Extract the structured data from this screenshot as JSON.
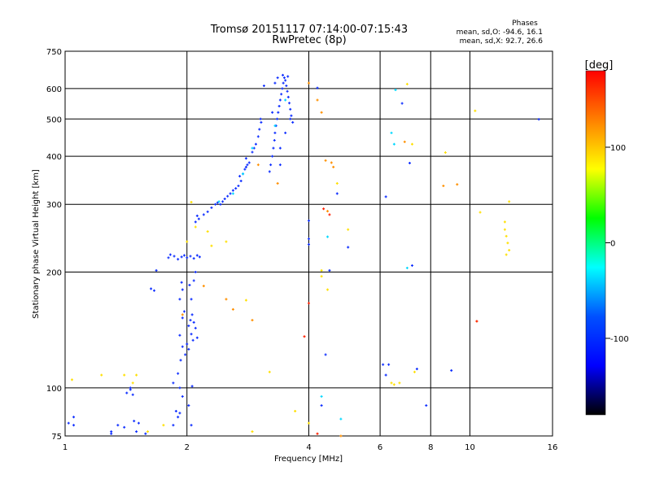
{
  "chart_data": {
    "type": "scatter",
    "title": "Tromsø 20151117 07:14:00-07:15:43",
    "subtitle": "RwPretec (8p)",
    "xlabel": "Frequency [MHz]",
    "ylabel": "Stationary phase Virtual Height [km]",
    "x_scale": "log",
    "y_scale": "log",
    "xlim": [
      1,
      16
    ],
    "ylim": [
      75,
      750
    ],
    "x_ticks": [
      1,
      2,
      4,
      6,
      8,
      10,
      16
    ],
    "y_ticks": [
      75,
      100,
      200,
      300,
      400,
      500,
      600,
      750
    ],
    "x_gridlines": [
      2,
      4,
      6,
      8,
      10
    ],
    "y_gridlines": [
      100,
      200,
      300,
      400,
      500,
      600
    ],
    "grid": true,
    "stats": {
      "heading": "Phases",
      "line1": "mean, sd,O: -94.6, 16.1",
      "line2": "mean, sd,X:  92.7, 26.6"
    },
    "colorbar": {
      "label": "[deg]",
      "min": -180,
      "max": 180,
      "ticks": [
        100,
        0,
        -100
      ],
      "tick_labels": [
        "100",
        "0",
        "-100"
      ],
      "colors": [
        "#ff0000",
        "#ff8000",
        "#ffff00",
        "#00ff00",
        "#00ffff",
        "#0050ff",
        "#0000ff",
        "#000000"
      ]
    },
    "series": [
      {
        "color": "#1030ff",
        "points": [
          [
            1.02,
            81
          ],
          [
            1.05,
            80
          ],
          [
            1.05,
            84
          ],
          [
            1.3,
            76
          ],
          [
            1.3,
            77
          ],
          [
            1.35,
            80
          ],
          [
            1.4,
            79
          ],
          [
            1.42,
            97
          ],
          [
            1.45,
            99
          ],
          [
            1.45,
            100
          ],
          [
            1.47,
            96
          ],
          [
            1.48,
            82
          ],
          [
            1.5,
            77
          ],
          [
            1.52,
            81
          ],
          [
            1.58,
            76
          ],
          [
            1.63,
            181
          ],
          [
            1.66,
            179
          ],
          [
            1.68,
            202
          ],
          [
            1.85,
            80
          ],
          [
            1.9,
            84
          ],
          [
            1.88,
            87
          ],
          [
            1.92,
            86
          ],
          [
            1.95,
            95
          ],
          [
            1.92,
            100
          ],
          [
            1.85,
            103
          ],
          [
            1.9,
            109
          ],
          [
            1.93,
            118
          ],
          [
            1.95,
            128
          ],
          [
            1.92,
            137
          ],
          [
            1.95,
            152
          ],
          [
            1.97,
            158
          ],
          [
            1.92,
            170
          ],
          [
            1.95,
            180
          ],
          [
            1.94,
            188
          ],
          [
            1.98,
            122
          ],
          [
            2.0,
            130
          ],
          [
            2.02,
            126
          ],
          [
            2.05,
            138
          ],
          [
            2.07,
            133
          ],
          [
            2.02,
            145
          ],
          [
            2.04,
            150
          ],
          [
            2.06,
            155
          ],
          [
            2.08,
            148
          ],
          [
            2.1,
            143
          ],
          [
            2.12,
            135
          ],
          [
            2.05,
            170
          ],
          [
            2.03,
            185
          ],
          [
            2.08,
            190
          ],
          [
            2.1,
            200
          ],
          [
            2.05,
            80
          ],
          [
            2.02,
            90
          ],
          [
            2.06,
            101
          ],
          [
            1.8,
            218
          ],
          [
            1.82,
            222
          ],
          [
            1.86,
            220
          ],
          [
            1.9,
            216
          ],
          [
            1.94,
            219
          ],
          [
            1.97,
            221
          ],
          [
            2.0,
            218
          ],
          [
            2.04,
            220
          ],
          [
            2.08,
            217
          ],
          [
            2.12,
            221
          ],
          [
            2.15,
            219
          ],
          [
            2.1,
            270
          ],
          [
            2.12,
            280
          ],
          [
            2.14,
            275
          ],
          [
            2.2,
            282
          ],
          [
            2.25,
            287
          ],
          [
            2.3,
            294
          ],
          [
            2.35,
            300
          ],
          [
            2.38,
            303
          ],
          [
            2.42,
            300
          ],
          [
            2.45,
            305
          ],
          [
            2.48,
            310
          ],
          [
            2.52,
            315
          ],
          [
            2.56,
            320
          ],
          [
            2.6,
            326
          ],
          [
            2.64,
            330
          ],
          [
            2.68,
            335
          ],
          [
            2.72,
            345
          ],
          [
            2.7,
            355
          ],
          [
            2.75,
            360
          ],
          [
            2.78,
            370
          ],
          [
            2.8,
            375
          ],
          [
            2.82,
            380
          ],
          [
            2.85,
            385
          ],
          [
            2.8,
            395
          ],
          [
            2.9,
            410
          ],
          [
            2.93,
            420
          ],
          [
            2.96,
            430
          ],
          [
            3.0,
            450
          ],
          [
            3.02,
            470
          ],
          [
            3.05,
            490
          ],
          [
            3.04,
            500
          ],
          [
            3.1,
            610
          ],
          [
            3.2,
            365
          ],
          [
            3.22,
            380
          ],
          [
            3.25,
            400
          ],
          [
            3.27,
            420
          ],
          [
            3.29,
            440
          ],
          [
            3.3,
            460
          ],
          [
            3.32,
            480
          ],
          [
            3.34,
            500
          ],
          [
            3.36,
            520
          ],
          [
            3.38,
            540
          ],
          [
            3.4,
            560
          ],
          [
            3.42,
            580
          ],
          [
            3.44,
            600
          ],
          [
            3.46,
            620
          ],
          [
            3.48,
            640
          ],
          [
            3.5,
            630
          ],
          [
            3.52,
            610
          ],
          [
            3.54,
            590
          ],
          [
            3.56,
            570
          ],
          [
            3.58,
            550
          ],
          [
            3.6,
            530
          ],
          [
            3.62,
            510
          ],
          [
            3.65,
            490
          ],
          [
            3.35,
            640
          ],
          [
            3.45,
            650
          ],
          [
            3.55,
            645
          ],
          [
            3.4,
            420
          ],
          [
            3.5,
            460
          ],
          [
            3.6,
            500
          ],
          [
            3.3,
            620
          ],
          [
            3.25,
            520
          ],
          [
            3.4,
            380
          ],
          [
            4.0,
            272
          ],
          [
            4.0,
            244
          ],
          [
            4.0,
            236
          ],
          [
            4.2,
            602
          ],
          [
            4.5,
            202
          ],
          [
            4.3,
            90
          ],
          [
            4.4,
            122
          ],
          [
            4.7,
            320
          ],
          [
            5.0,
            232
          ],
          [
            6.1,
            115
          ],
          [
            6.2,
            108
          ],
          [
            6.3,
            115
          ],
          [
            6.2,
            314
          ],
          [
            6.8,
            549
          ],
          [
            7.1,
            384
          ],
          [
            7.2,
            208
          ],
          [
            7.4,
            112
          ],
          [
            7.8,
            90
          ],
          [
            9.0,
            111
          ],
          [
            14.8,
            499
          ]
        ]
      },
      {
        "color": "#00d8ff",
        "points": [
          [
            2.4,
            305
          ],
          [
            2.6,
            320
          ],
          [
            2.75,
            360
          ],
          [
            2.9,
            420
          ],
          [
            3.3,
            480
          ],
          [
            3.5,
            560
          ],
          [
            4.45,
            247
          ],
          [
            6.5,
            430
          ],
          [
            6.4,
            460
          ],
          [
            4.3,
            95
          ],
          [
            4.8,
            83
          ],
          [
            7.0,
            205
          ],
          [
            6.55,
            595
          ]
        ]
      },
      {
        "color": "#ffe000",
        "points": [
          [
            1.04,
            105
          ],
          [
            1.23,
            108
          ],
          [
            1.4,
            108
          ],
          [
            1.47,
            103
          ],
          [
            1.5,
            108
          ],
          [
            1.6,
            77
          ],
          [
            1.75,
            80
          ],
          [
            2.0,
            240
          ],
          [
            2.05,
            304
          ],
          [
            2.1,
            262
          ],
          [
            2.25,
            255
          ],
          [
            2.3,
            234
          ],
          [
            2.5,
            240
          ],
          [
            2.8,
            169
          ],
          [
            2.9,
            77
          ],
          [
            3.2,
            110
          ],
          [
            3.7,
            87
          ],
          [
            4.0,
            81
          ],
          [
            4.3,
            202
          ],
          [
            4.45,
            180
          ],
          [
            4.3,
            195
          ],
          [
            4.7,
            340
          ],
          [
            5.0,
            258
          ],
          [
            6.4,
            103
          ],
          [
            6.5,
            102
          ],
          [
            6.7,
            103
          ],
          [
            7.0,
            616
          ],
          [
            7.2,
            430
          ],
          [
            7.3,
            110
          ],
          [
            8.7,
            409
          ],
          [
            10.3,
            525
          ],
          [
            10.6,
            286
          ],
          [
            12.2,
            270
          ],
          [
            12.2,
            258
          ],
          [
            12.3,
            248
          ],
          [
            12.4,
            238
          ],
          [
            12.5,
            228
          ],
          [
            12.3,
            222
          ],
          [
            12.5,
            305
          ]
        ]
      },
      {
        "color": "#ff9000",
        "points": [
          [
            1.95,
            155
          ],
          [
            2.2,
            184
          ],
          [
            2.5,
            170
          ],
          [
            2.6,
            160
          ],
          [
            2.9,
            150
          ],
          [
            3.0,
            380
          ],
          [
            3.35,
            340
          ],
          [
            4.0,
            620
          ],
          [
            4.2,
            560
          ],
          [
            4.3,
            520
          ],
          [
            4.4,
            390
          ],
          [
            4.45,
            288
          ],
          [
            4.55,
            385
          ],
          [
            4.6,
            375
          ],
          [
            4.8,
            75
          ],
          [
            6.9,
            436
          ],
          [
            8.6,
            335
          ],
          [
            9.3,
            338
          ],
          [
            10.4,
            149
          ]
        ]
      },
      {
        "color": "#ff2000",
        "points": [
          [
            3.9,
            136
          ],
          [
            4.0,
            166
          ],
          [
            4.35,
            292
          ],
          [
            4.5,
            282
          ],
          [
            10.4,
            149
          ],
          [
            4.2,
            76
          ]
        ]
      }
    ]
  }
}
